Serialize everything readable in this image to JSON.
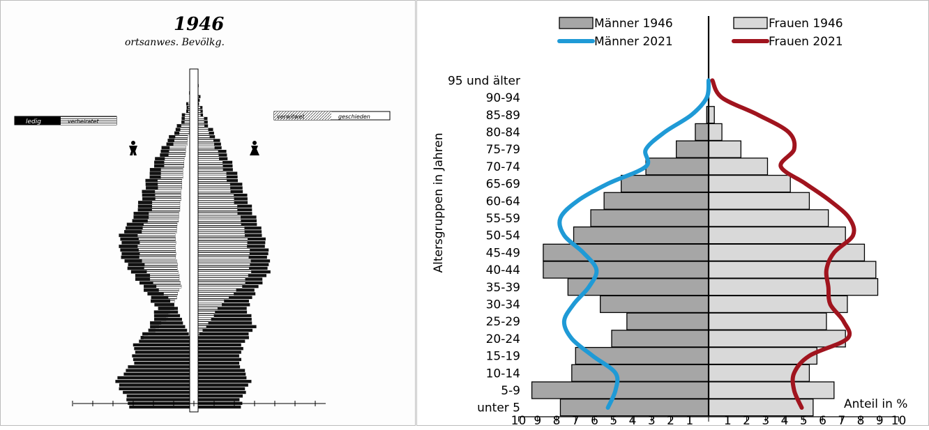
{
  "scan": {
    "title_year": "1946",
    "subtitle": "ortsanwes. Bevölkg.",
    "legend_left": [
      "ledig",
      "verheiratet"
    ],
    "legend_right": [
      "verwitwet",
      "geschieden"
    ]
  },
  "chart_data": {
    "type": "bar",
    "orientation": "horizontal-population-pyramid",
    "categories": [
      "unter 5",
      "5-9",
      "10-14",
      "15-19",
      "20-24",
      "25-29",
      "30-34",
      "35-39",
      "40-44",
      "45-49",
      "50-54",
      "55-59",
      "60-64",
      "65-69",
      "70-74",
      "75-79",
      "80-84",
      "85-89",
      "90-94",
      "95 und älter"
    ],
    "ylabel": "Altersgruppen in Jahren",
    "xlabel": "Anteil in %",
    "xlim": [
      -10,
      10
    ],
    "x_tick_labels": [
      "10",
      "9",
      "8",
      "7",
      "6",
      "5",
      "4",
      "3",
      "2",
      "1",
      "1",
      "2",
      "3",
      "4",
      "5",
      "6",
      "7",
      "8",
      "9",
      "10"
    ],
    "legend": [
      {
        "label": "Männer 1946",
        "color": "#a6a6a6",
        "kind": "bar"
      },
      {
        "label": "Frauen 1946",
        "color": "#d9d9d9",
        "kind": "bar"
      },
      {
        "label": "Männer 2021",
        "color": "#1f9ad6",
        "kind": "line"
      },
      {
        "label": "Frauen 2021",
        "color": "#a0141e",
        "kind": "line"
      }
    ],
    "series": [
      {
        "name": "Männer 1946",
        "color": "#a6a6a6",
        "values": [
          7.8,
          9.3,
          7.2,
          7.0,
          5.1,
          4.3,
          5.7,
          7.4,
          8.7,
          8.7,
          7.1,
          6.2,
          5.5,
          4.6,
          3.3,
          1.7,
          0.7,
          0.1,
          0,
          0
        ]
      },
      {
        "name": "Frauen 1946",
        "color": "#d9d9d9",
        "values": [
          5.5,
          6.6,
          5.3,
          5.7,
          7.2,
          6.2,
          7.3,
          8.9,
          8.8,
          8.2,
          7.2,
          6.3,
          5.3,
          4.3,
          3.1,
          1.7,
          0.7,
          0.3,
          0,
          0
        ]
      },
      {
        "name": "Männer 2021",
        "color": "#1f9ad6",
        "values": [
          5.3,
          4.9,
          4.9,
          6.1,
          7.2,
          7.6,
          7.1,
          6.3,
          5.9,
          6.6,
          7.6,
          7.8,
          6.9,
          5.3,
          3.3,
          3.3,
          2.3,
          0.9,
          0.1,
          0
        ]
      },
      {
        "name": "Frauen 2021",
        "color": "#a0141e",
        "values": [
          4.9,
          4.5,
          4.5,
          5.3,
          7.3,
          7.1,
          6.4,
          6.3,
          6.2,
          6.6,
          7.6,
          7.4,
          6.4,
          5.1,
          3.8,
          4.5,
          4.2,
          2.6,
          0.7,
          0.2
        ]
      }
    ]
  }
}
